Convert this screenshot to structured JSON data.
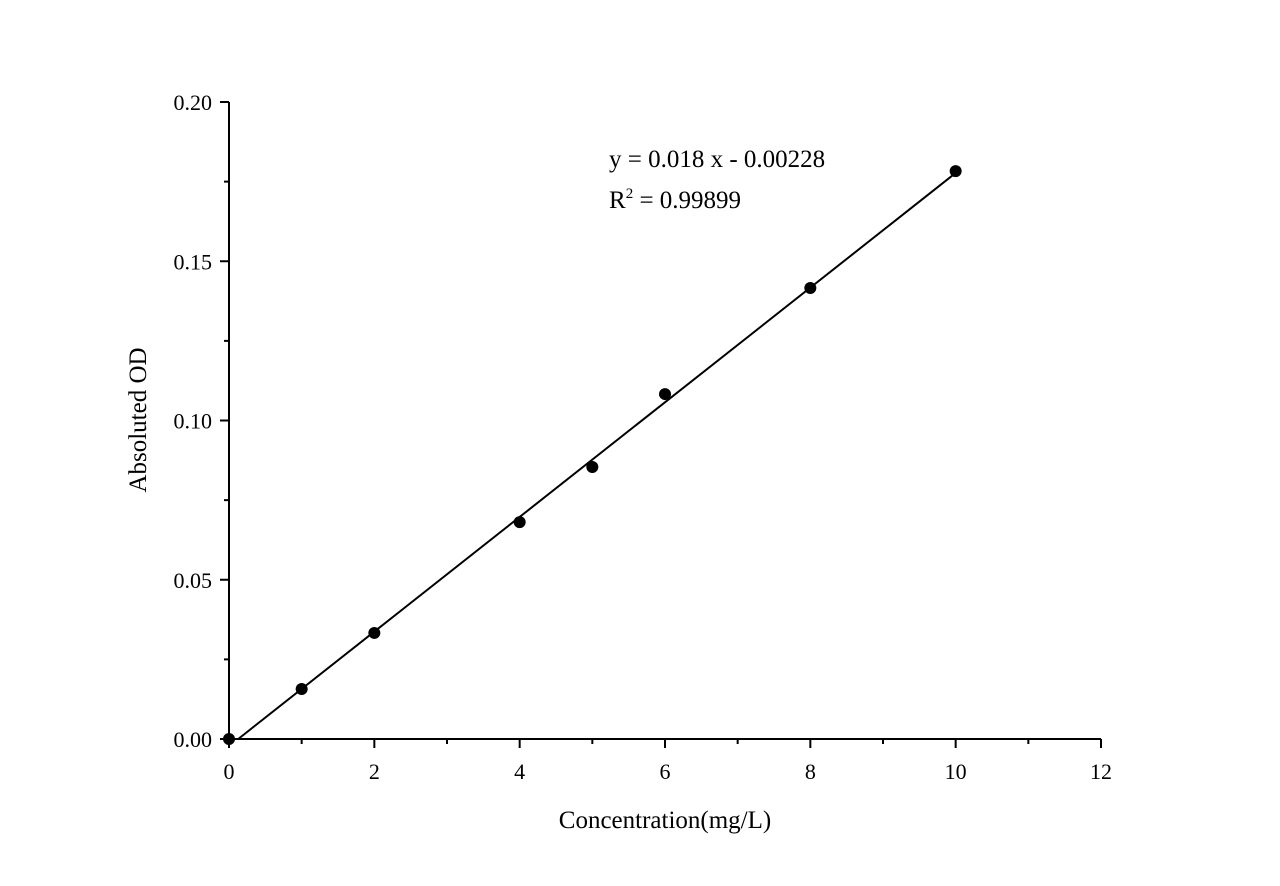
{
  "chart_data": {
    "type": "scatter",
    "title": "",
    "xlabel": "Concentration(mg/L)",
    "ylabel": "Absoluted OD",
    "xlim": [
      0,
      12
    ],
    "ylim": [
      0,
      0.2
    ],
    "xticks": [
      "0",
      "2",
      "4",
      "6",
      "8",
      "10",
      "12"
    ],
    "yticks": [
      "0.00",
      "0.05",
      "0.10",
      "0.15",
      "0.20"
    ],
    "grid": false,
    "legend": "none",
    "series": [
      {
        "x": [
          0,
          1,
          2,
          4,
          5,
          6,
          8,
          10
        ],
        "y": [
          0.0,
          0.0157,
          0.0333,
          0.0681,
          0.0854,
          0.1083,
          0.1416,
          0.1783
        ],
        "color": "#000000",
        "marker": "circle"
      }
    ],
    "fit": {
      "slope": 0.018,
      "intercept": -0.00228,
      "x_range": [
        0.127,
        10
      ],
      "equation_label": "y = 0.018 x - 0.00228",
      "r2_prefix": "R",
      "r2_sup": "2",
      "r2_value": " = 0.99899"
    }
  }
}
